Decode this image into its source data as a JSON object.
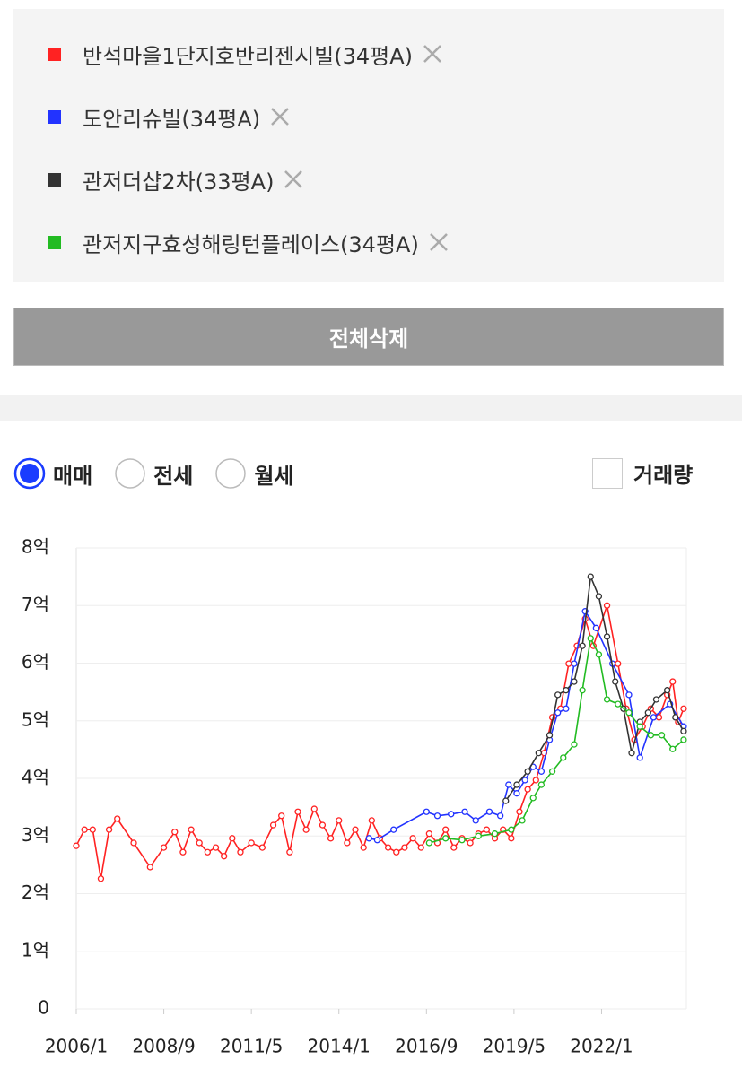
{
  "delete_all_button": "전체삭제",
  "modes": [
    "매매",
    "전세",
    "월세"
  ],
  "selected_mode": 0,
  "volume_label": "거래량",
  "volume_checked": false,
  "chart_data": {
    "type": "line",
    "xlim": [
      "2006/1",
      "2024/8"
    ],
    "xticks": [
      "2006/1",
      "2008/9",
      "2011/5",
      "2014/1",
      "2016/9",
      "2019/5",
      "2022/1"
    ],
    "ylim": [
      0,
      8
    ],
    "yticks": [
      0,
      {
        "value": 1,
        "label": "1억"
      },
      {
        "value": 2,
        "label": "2억"
      },
      {
        "value": 3,
        "label": "3억"
      },
      {
        "value": 4,
        "label": "4억"
      },
      {
        "value": 5,
        "label": "5억"
      },
      {
        "value": 6,
        "label": "6억"
      },
      {
        "value": 7,
        "label": "7억"
      },
      {
        "value": 8,
        "label": "8억"
      }
    ],
    "grid": true,
    "series": [
      {
        "name": "반석마을1단지호반리젠시빌(34평A)",
        "color": "#ff2222",
        "x": [
          "2006/1",
          "2006/4",
          "2006/7",
          "2006/10",
          "2007/1",
          "2007/4",
          "2007/10",
          "2008/4",
          "2008/9",
          "2009/1",
          "2009/4",
          "2009/7",
          "2009/10",
          "2010/1",
          "2010/4",
          "2010/7",
          "2010/10",
          "2011/1",
          "2011/5",
          "2011/9",
          "2012/1",
          "2012/4",
          "2012/7",
          "2012/10",
          "2013/1",
          "2013/4",
          "2013/7",
          "2013/10",
          "2014/1",
          "2014/4",
          "2014/7",
          "2014/10",
          "2015/1",
          "2015/4",
          "2015/7",
          "2015/10",
          "2016/1",
          "2016/4",
          "2016/7",
          "2016/10",
          "2017/1",
          "2017/4",
          "2017/7",
          "2017/10",
          "2018/1",
          "2018/4",
          "2018/7",
          "2018/10",
          "2019/1",
          "2019/4",
          "2019/7",
          "2019/10",
          "2020/1",
          "2020/4",
          "2020/7",
          "2020/10",
          "2021/1",
          "2021/4",
          "2021/7",
          "2021/10",
          "2022/3",
          "2022/7",
          "2022/10",
          "2023/1",
          "2023/4",
          "2023/7",
          "2023/10",
          "2024/1",
          "2024/3",
          "2024/5",
          "2024/7"
        ],
        "values": [
          2.83,
          3.11,
          3.11,
          2.26,
          3.11,
          3.3,
          2.88,
          2.46,
          2.8,
          3.07,
          2.72,
          3.11,
          2.88,
          2.72,
          2.8,
          2.65,
          2.96,
          2.72,
          2.88,
          2.8,
          3.19,
          3.35,
          2.72,
          3.42,
          3.11,
          3.47,
          3.19,
          2.96,
          3.27,
          2.88,
          3.11,
          2.8,
          3.27,
          2.96,
          2.8,
          2.72,
          2.8,
          2.96,
          2.8,
          3.04,
          2.88,
          3.11,
          2.8,
          2.96,
          2.88,
          3.04,
          3.11,
          2.96,
          3.11,
          2.96,
          3.42,
          3.81,
          3.97,
          4.44,
          5.06,
          5.21,
          5.99,
          6.3,
          6.77,
          6.3,
          7.0,
          5.99,
          5.21,
          4.67,
          4.9,
          5.21,
          5.06,
          5.45,
          5.68,
          4.98,
          5.21
        ]
      },
      {
        "name": "도안리슈빌(34평A)",
        "color": "#2233ff",
        "x": [
          "2014/12",
          "2015/3",
          "2015/9",
          "2016/9",
          "2017/1",
          "2017/6",
          "2017/11",
          "2018/3",
          "2018/8",
          "2018/12",
          "2019/3",
          "2019/6",
          "2019/9",
          "2019/12",
          "2020/3",
          "2020/6",
          "2020/9",
          "2020/12",
          "2021/3",
          "2021/7",
          "2021/11",
          "2022/5",
          "2022/11",
          "2023/3",
          "2023/8",
          "2024/2",
          "2024/7"
        ],
        "values": [
          2.96,
          2.93,
          3.11,
          3.42,
          3.35,
          3.38,
          3.42,
          3.27,
          3.42,
          3.35,
          3.89,
          3.74,
          3.97,
          4.2,
          4.12,
          4.67,
          5.14,
          5.21,
          5.99,
          6.9,
          6.61,
          5.99,
          5.45,
          4.36,
          5.06,
          5.29,
          4.9
        ]
      },
      {
        "name": "관저더샵2차(33평A)",
        "color": "#333333",
        "x": [
          "2019/2",
          "2019/6",
          "2019/10",
          "2020/2",
          "2020/6",
          "2020/9",
          "2020/12",
          "2021/3",
          "2021/6",
          "2021/9",
          "2021/12",
          "2022/3",
          "2022/6",
          "2022/9",
          "2022/12",
          "2023/3",
          "2023/6",
          "2023/9",
          "2024/1",
          "2024/4",
          "2024/7"
        ],
        "values": [
          3.61,
          3.89,
          4.12,
          4.44,
          4.75,
          5.45,
          5.53,
          5.68,
          6.3,
          7.5,
          7.16,
          6.46,
          5.68,
          5.21,
          4.44,
          4.98,
          5.14,
          5.37,
          5.53,
          5.06,
          4.82
        ]
      },
      {
        "name": "관저지구효성해링턴플레이스(34평A)",
        "color": "#22bb22",
        "x": [
          "2016/10",
          "2017/4",
          "2017/10",
          "2018/4",
          "2018/10",
          "2019/4",
          "2019/8",
          "2019/12",
          "2020/3",
          "2020/7",
          "2020/11",
          "2021/3",
          "2021/6",
          "2021/9",
          "2021/12",
          "2022/3",
          "2022/7",
          "2022/11",
          "2023/3",
          "2023/7",
          "2023/11",
          "2024/3",
          "2024/7"
        ],
        "values": [
          2.88,
          2.96,
          2.93,
          3.0,
          3.04,
          3.11,
          3.27,
          3.66,
          3.89,
          4.12,
          4.36,
          4.59,
          5.53,
          6.43,
          6.15,
          5.37,
          5.29,
          5.14,
          4.9,
          4.75,
          4.75,
          4.51,
          4.67
        ]
      }
    ]
  }
}
